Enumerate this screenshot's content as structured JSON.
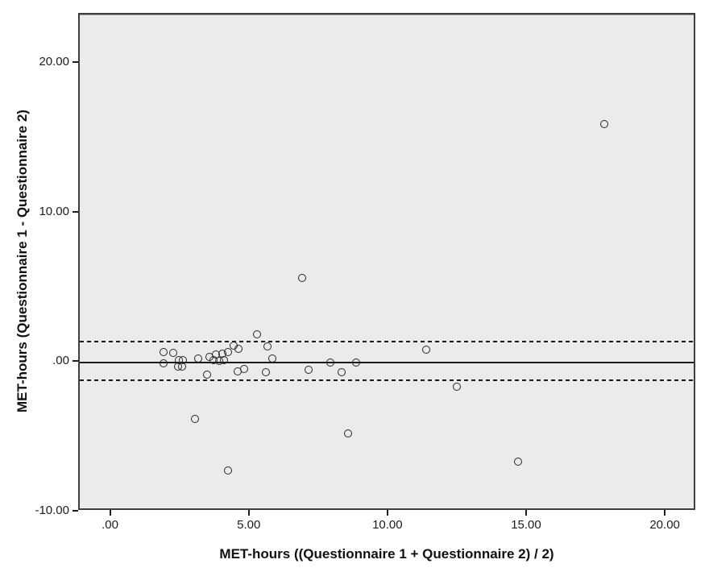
{
  "chart_data": {
    "type": "scatter",
    "title": "",
    "xlabel": "MET-hours ((Questionnaire 1 + Questionnaire 2) / 2)",
    "ylabel": "MET-hours (Questionnaire 1 - Questionnaire 2)",
    "xlim": [
      -1.15,
      21.1
    ],
    "ylim": [
      -9.96,
      23.3
    ],
    "grid": false,
    "legend": false,
    "x_ticks": [
      {
        "value": 0,
        "label": ".00"
      },
      {
        "value": 5,
        "label": "5.00"
      },
      {
        "value": 10,
        "label": "10.00"
      },
      {
        "value": 15,
        "label": "15.00"
      },
      {
        "value": 20,
        "label": "20.00"
      }
    ],
    "y_ticks": [
      {
        "value": -10,
        "label": "-10.00"
      },
      {
        "value": 0,
        "label": ".00"
      },
      {
        "value": 10,
        "label": "10.00"
      },
      {
        "value": 20,
        "label": "20.00"
      }
    ],
    "reference_lines": [
      {
        "name": "mean-difference",
        "value": 0.0,
        "style": "solid"
      },
      {
        "name": "upper-limit-of-agreement",
        "value": 1.43,
        "style": "dashed"
      },
      {
        "name": "lower-limit-of-agreement",
        "value": -1.19,
        "style": "dashed"
      }
    ],
    "points": [
      [
        1.87,
        0.74
      ],
      [
        2.23,
        0.66
      ],
      [
        1.87,
        -0.06
      ],
      [
        2.42,
        0.2
      ],
      [
        2.58,
        0.2
      ],
      [
        2.39,
        -0.23
      ],
      [
        2.54,
        -0.25
      ],
      [
        3.12,
        0.29
      ],
      [
        3.53,
        0.37
      ],
      [
        3.44,
        -0.77
      ],
      [
        3.0,
        -3.74
      ],
      [
        3.77,
        0.54
      ],
      [
        3.99,
        0.63
      ],
      [
        4.19,
        0.72
      ],
      [
        3.67,
        0.18
      ],
      [
        3.87,
        0.12
      ],
      [
        4.06,
        0.18
      ],
      [
        4.54,
        -0.59
      ],
      [
        4.77,
        -0.41
      ],
      [
        4.4,
        1.16
      ],
      [
        4.57,
        0.95
      ],
      [
        5.23,
        1.89
      ],
      [
        5.61,
        1.08
      ],
      [
        5.78,
        0.3
      ],
      [
        5.57,
        -0.63
      ],
      [
        4.19,
        -7.22
      ],
      [
        6.88,
        5.66
      ],
      [
        7.09,
        -0.45
      ],
      [
        7.89,
        0.02
      ],
      [
        8.29,
        -0.66
      ],
      [
        8.8,
        0.01
      ],
      [
        8.51,
        -4.71
      ],
      [
        11.35,
        0.85
      ],
      [
        12.45,
        -1.62
      ],
      [
        14.65,
        -6.6
      ],
      [
        17.75,
        15.96
      ]
    ]
  },
  "colors": {
    "background": "#ffffff",
    "plot_background": "#ebebeb",
    "frame": "#3f3f3f",
    "marker_outline": "#262626",
    "reference_line": "#1a1a1a",
    "text": "#1c1c1c"
  }
}
